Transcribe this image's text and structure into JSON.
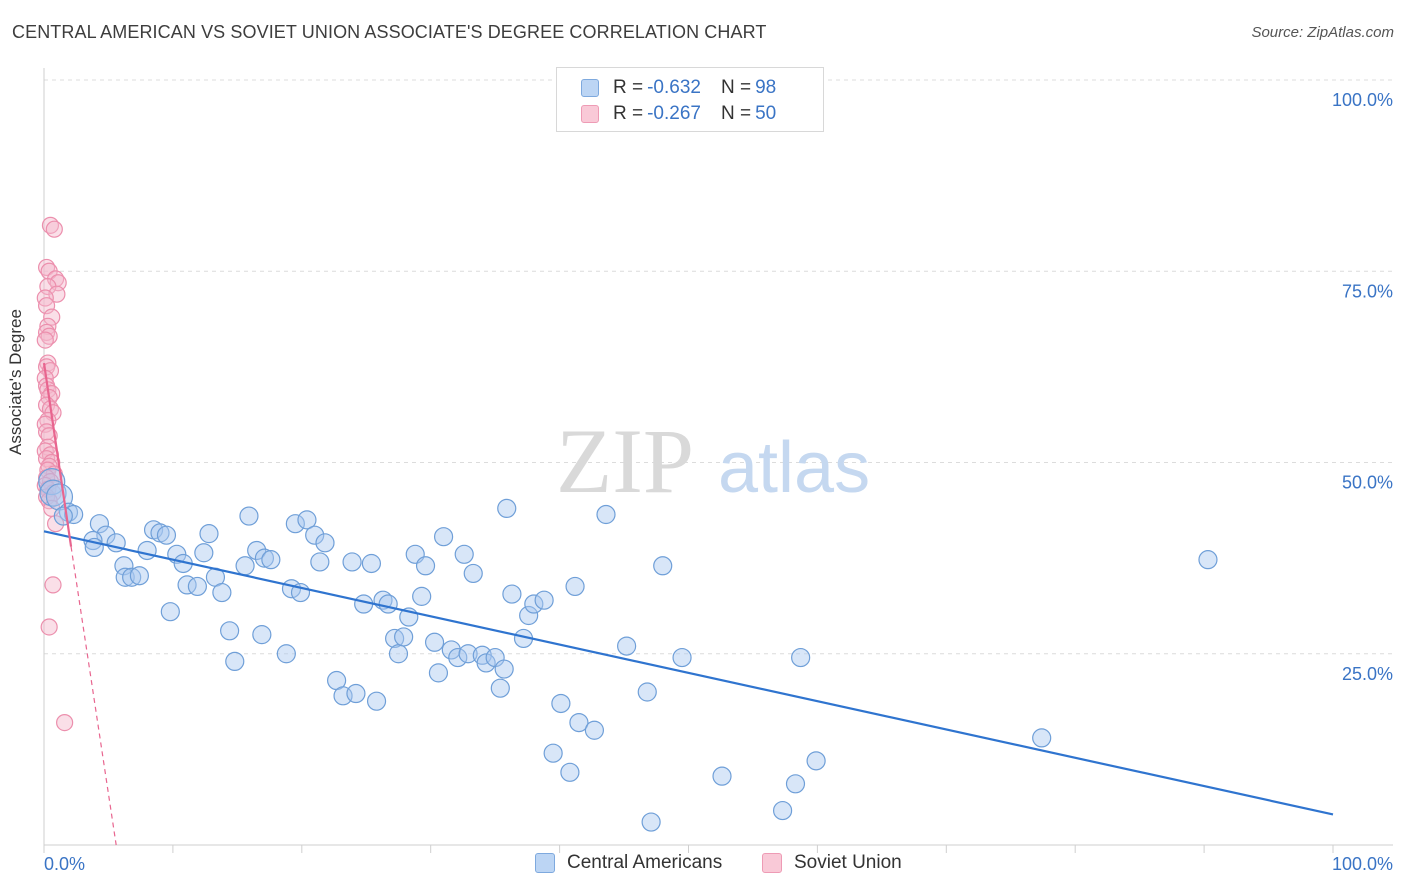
{
  "header": {
    "title": "CENTRAL AMERICAN VS SOVIET UNION ASSOCIATE'S DEGREE CORRELATION CHART",
    "source": "Source: ZipAtlas.com"
  },
  "legend": {
    "rows": [
      {
        "r_label": "R = ",
        "r_value": "-0.632",
        "n_label": "N = ",
        "n_value": "98"
      },
      {
        "r_label": "R = ",
        "r_value": "-0.267",
        "n_label": "N = ",
        "n_value": "50"
      }
    ]
  },
  "bottom_legend": {
    "items": [
      {
        "label": "Central Americans"
      },
      {
        "label": "Soviet Union"
      }
    ]
  },
  "watermark": {
    "zip": "ZIP",
    "atlas": "atlas"
  },
  "colors": {
    "blue_fill": "#a9c8f0",
    "blue_stroke": "#6f9fd8",
    "blue_line": "#2f74cf",
    "pink_fill": "#f5b8cb",
    "pink_stroke": "#ec8fad",
    "pink_line": "#e8658f",
    "tick_text": "#3a74c5",
    "grid": "#dcdcdc"
  },
  "chart_data": {
    "type": "scatter",
    "title": "CENTRAL AMERICAN VS SOVIET UNION ASSOCIATE'S DEGREE CORRELATION CHART",
    "xlabel": "",
    "ylabel": "Associate's Degree",
    "xlim": [
      0,
      100
    ],
    "ylim": [
      0,
      100
    ],
    "x_tick_labels": [
      "0.0%",
      "100.0%"
    ],
    "y_tick_labels": [
      "100.0%",
      "75.0%",
      "50.0%",
      "25.0%"
    ],
    "y_ticks": [
      100,
      75,
      50,
      25
    ],
    "grid": true,
    "legend_position": "top-center",
    "series": [
      {
        "name": "Central Americans",
        "R": -0.632,
        "N": 98,
        "trend": {
          "x": [
            0,
            100
          ],
          "y": [
            41.0,
            4.0
          ]
        },
        "points": [
          [
            0.6,
            47.5
          ],
          [
            0.7,
            46.0
          ],
          [
            1.2,
            45.5
          ],
          [
            1.9,
            43.5
          ],
          [
            2.3,
            43.2
          ],
          [
            1.5,
            43.0
          ],
          [
            4.3,
            42.0
          ],
          [
            4.8,
            40.5
          ],
          [
            5.6,
            39.5
          ],
          [
            3.8,
            39.8
          ],
          [
            3.9,
            38.9
          ],
          [
            8.0,
            38.5
          ],
          [
            6.2,
            36.5
          ],
          [
            6.3,
            35.0
          ],
          [
            6.8,
            35.0
          ],
          [
            7.4,
            35.2
          ],
          [
            8.5,
            41.2
          ],
          [
            9.0,
            40.8
          ],
          [
            9.5,
            40.5
          ],
          [
            10.3,
            38.0
          ],
          [
            10.8,
            36.8
          ],
          [
            11.1,
            34.0
          ],
          [
            11.9,
            33.8
          ],
          [
            12.4,
            38.2
          ],
          [
            12.8,
            40.7
          ],
          [
            13.3,
            35.0
          ],
          [
            13.8,
            33.0
          ],
          [
            9.8,
            30.5
          ],
          [
            14.4,
            28.0
          ],
          [
            14.8,
            24.0
          ],
          [
            15.6,
            36.5
          ],
          [
            15.9,
            43.0
          ],
          [
            16.5,
            38.5
          ],
          [
            17.1,
            37.5
          ],
          [
            17.6,
            37.3
          ],
          [
            16.9,
            27.5
          ],
          [
            18.8,
            25.0
          ],
          [
            19.2,
            33.5
          ],
          [
            19.5,
            42.0
          ],
          [
            19.9,
            33.0
          ],
          [
            20.4,
            42.5
          ],
          [
            21.0,
            40.5
          ],
          [
            21.4,
            37.0
          ],
          [
            21.8,
            39.5
          ],
          [
            22.7,
            21.5
          ],
          [
            23.2,
            19.5
          ],
          [
            23.9,
            37.0
          ],
          [
            24.2,
            19.8
          ],
          [
            24.8,
            31.5
          ],
          [
            25.4,
            36.8
          ],
          [
            25.8,
            18.8
          ],
          [
            26.3,
            32.0
          ],
          [
            26.7,
            31.5
          ],
          [
            27.2,
            27.0
          ],
          [
            27.5,
            25.0
          ],
          [
            27.9,
            27.2
          ],
          [
            28.3,
            29.8
          ],
          [
            28.8,
            38.0
          ],
          [
            29.3,
            32.5
          ],
          [
            29.6,
            36.5
          ],
          [
            30.3,
            26.5
          ],
          [
            30.6,
            22.5
          ],
          [
            31.0,
            40.3
          ],
          [
            31.6,
            25.5
          ],
          [
            32.1,
            24.5
          ],
          [
            32.6,
            38.0
          ],
          [
            32.9,
            25.0
          ],
          [
            33.3,
            35.5
          ],
          [
            34.0,
            24.8
          ],
          [
            34.3,
            23.8
          ],
          [
            35.0,
            24.5
          ],
          [
            35.7,
            23.0
          ],
          [
            35.4,
            20.5
          ],
          [
            35.9,
            44.0
          ],
          [
            36.3,
            32.8
          ],
          [
            37.2,
            27.0
          ],
          [
            37.6,
            30.0
          ],
          [
            38.0,
            31.5
          ],
          [
            38.8,
            32.0
          ],
          [
            39.5,
            12.0
          ],
          [
            40.1,
            18.5
          ],
          [
            40.8,
            9.5
          ],
          [
            41.2,
            33.8
          ],
          [
            41.5,
            16.0
          ],
          [
            42.7,
            15.0
          ],
          [
            43.6,
            43.2
          ],
          [
            45.2,
            26.0
          ],
          [
            46.8,
            20.0
          ],
          [
            47.1,
            3.0
          ],
          [
            48.0,
            36.5
          ],
          [
            49.5,
            24.5
          ],
          [
            52.6,
            9.0
          ],
          [
            57.3,
            4.5
          ],
          [
            58.3,
            8.0
          ],
          [
            58.7,
            24.5
          ],
          [
            59.9,
            11.0
          ],
          [
            77.4,
            14.0
          ],
          [
            90.3,
            37.3
          ]
        ]
      },
      {
        "name": "Soviet Union",
        "R": -0.267,
        "N": 50,
        "trend": {
          "x": [
            0,
            2.1
          ],
          "y": [
            63.0,
            39.0
          ],
          "dashed_extension_to": [
            5.6,
            0
          ]
        },
        "points": [
          [
            0.5,
            81.0
          ],
          [
            0.8,
            80.5
          ],
          [
            0.2,
            75.5
          ],
          [
            0.4,
            75.0
          ],
          [
            0.9,
            74.0
          ],
          [
            1.1,
            73.5
          ],
          [
            0.3,
            73.0
          ],
          [
            1.0,
            72.0
          ],
          [
            0.1,
            71.5
          ],
          [
            0.2,
            70.5
          ],
          [
            0.6,
            69.0
          ],
          [
            0.3,
            67.8
          ],
          [
            0.2,
            67.0
          ],
          [
            0.4,
            66.5
          ],
          [
            0.1,
            66.0
          ],
          [
            0.3,
            63.0
          ],
          [
            0.2,
            62.5
          ],
          [
            0.5,
            62.0
          ],
          [
            0.1,
            61.0
          ],
          [
            0.2,
            60.0
          ],
          [
            0.3,
            59.5
          ],
          [
            0.6,
            59.0
          ],
          [
            0.4,
            58.5
          ],
          [
            0.2,
            57.5
          ],
          [
            0.5,
            57.0
          ],
          [
            0.7,
            56.5
          ],
          [
            0.3,
            55.5
          ],
          [
            0.1,
            55.0
          ],
          [
            0.2,
            54.0
          ],
          [
            0.4,
            53.5
          ],
          [
            0.3,
            52.0
          ],
          [
            0.1,
            51.5
          ],
          [
            0.5,
            51.0
          ],
          [
            0.2,
            50.5
          ],
          [
            0.6,
            50.0
          ],
          [
            0.4,
            49.5
          ],
          [
            0.3,
            49.0
          ],
          [
            0.8,
            48.5
          ],
          [
            0.2,
            48.0
          ],
          [
            0.5,
            47.5
          ],
          [
            0.1,
            47.0
          ],
          [
            0.3,
            46.5
          ],
          [
            0.7,
            46.0
          ],
          [
            0.2,
            45.5
          ],
          [
            0.4,
            45.0
          ],
          [
            0.6,
            44.0
          ],
          [
            0.9,
            42.0
          ],
          [
            0.7,
            34.0
          ],
          [
            0.4,
            28.5
          ],
          [
            1.6,
            16.0
          ]
        ]
      }
    ]
  }
}
